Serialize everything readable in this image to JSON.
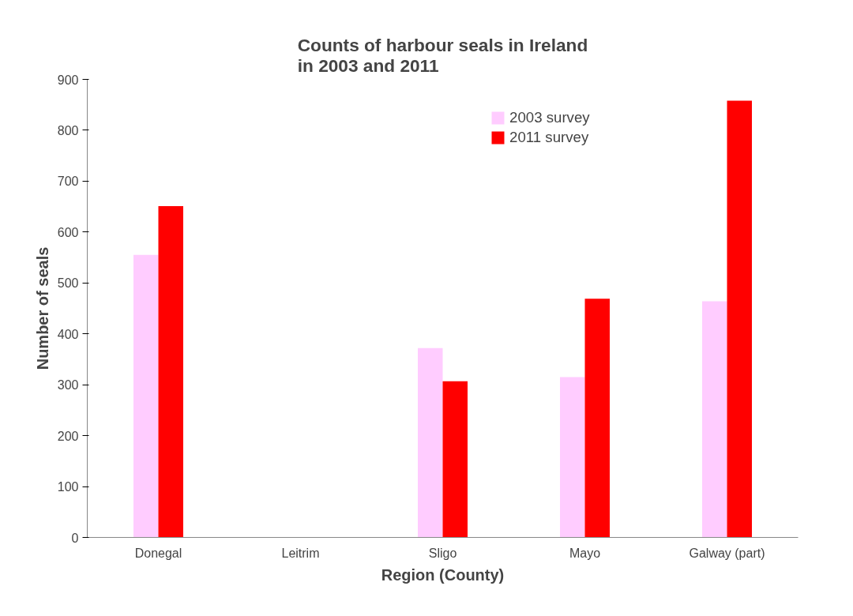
{
  "chart_data": {
    "type": "bar",
    "title": "Counts of harbour seals in Ireland\nin 2003 and 2011",
    "xlabel": "Region (County)",
    "ylabel": "Number of seals",
    "categories": [
      "Donegal",
      "Leitrim",
      "Sligo",
      "Mayo",
      "Galway (part)"
    ],
    "series": [
      {
        "name": "2003 survey",
        "color": "#ffccff",
        "values": [
          555,
          0,
          372,
          315,
          464
        ]
      },
      {
        "name": "2011 survey",
        "color": "#ff0000",
        "values": [
          651,
          0,
          307,
          469,
          858
        ]
      }
    ],
    "ylim": [
      0,
      900
    ],
    "yticks": [
      0,
      100,
      200,
      300,
      400,
      500,
      600,
      700,
      800,
      900
    ],
    "grid": false,
    "legend": "top right"
  }
}
